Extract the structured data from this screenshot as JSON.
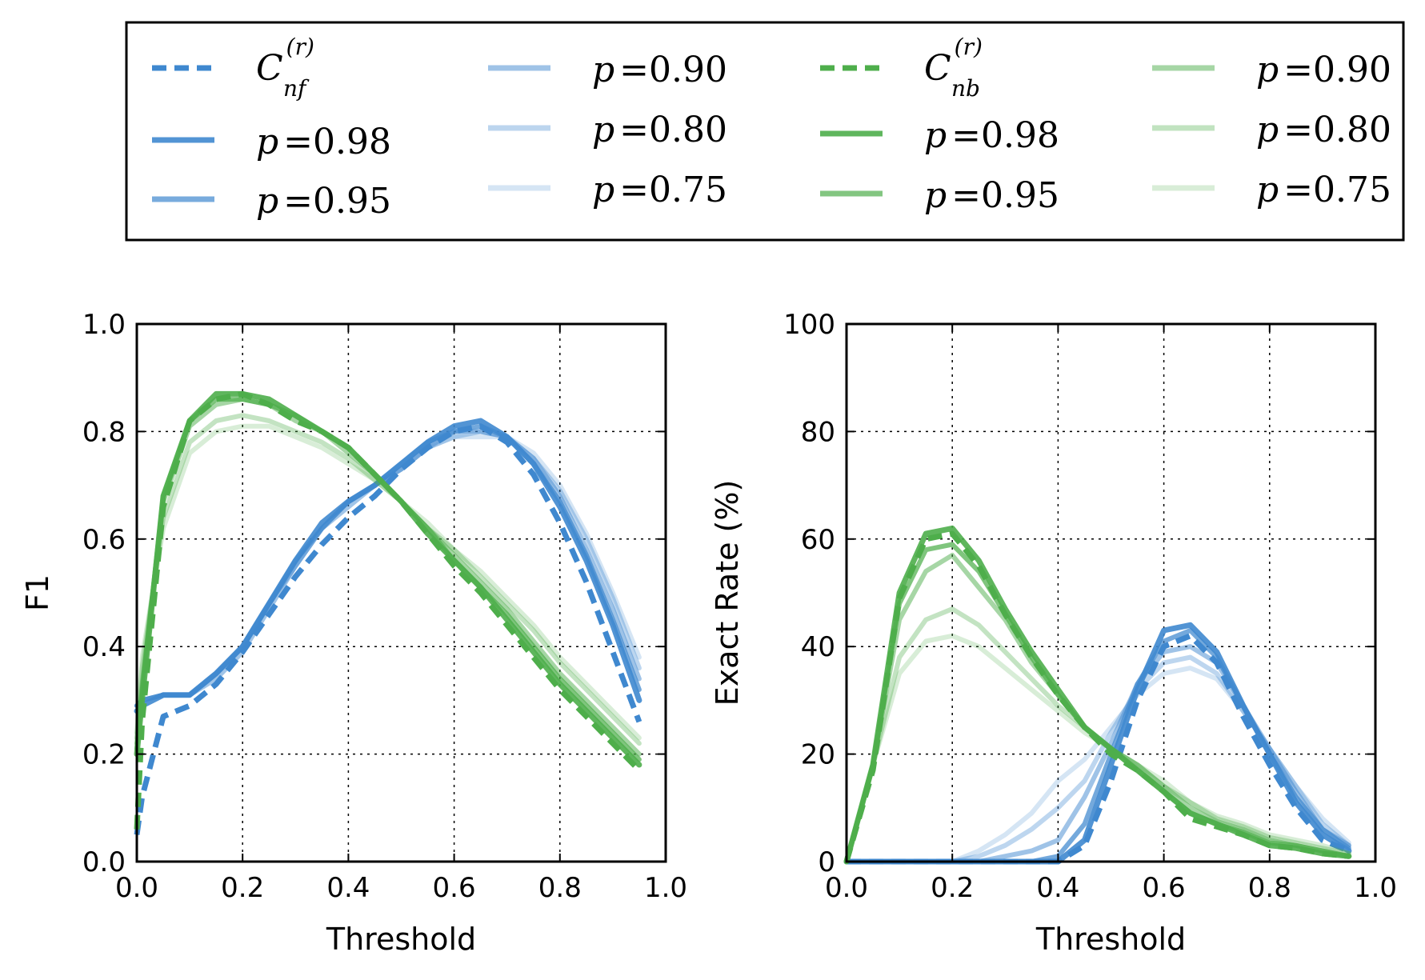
{
  "legend": {
    "entries": [
      {
        "kind": "base",
        "symbol": "C",
        "sup": "(r)",
        "sub": "nf",
        "color": "#3f88cf",
        "opacity": 1.0,
        "dashed": true
      },
      {
        "kind": "p",
        "var": "p",
        "value": "=0.98",
        "color": "#3f88cf",
        "opacity": 0.9,
        "dashed": false
      },
      {
        "kind": "p",
        "var": "p",
        "value": "=0.95",
        "color": "#3f88cf",
        "opacity": 0.7,
        "dashed": false
      },
      {
        "kind": "p",
        "var": "p",
        "value": "=0.90",
        "color": "#3f88cf",
        "opacity": 0.5,
        "dashed": false
      },
      {
        "kind": "p",
        "var": "p",
        "value": "=0.80",
        "color": "#3f88cf",
        "opacity": 0.35,
        "dashed": false
      },
      {
        "kind": "p",
        "var": "p",
        "value": "=0.75",
        "color": "#3f88cf",
        "opacity": 0.22,
        "dashed": false
      },
      {
        "kind": "base",
        "symbol": "C",
        "sup": "(r)",
        "sub": "nb",
        "color": "#4eae4b",
        "opacity": 1.0,
        "dashed": true
      },
      {
        "kind": "p",
        "var": "p",
        "value": "=0.98",
        "color": "#4eae4b",
        "opacity": 0.9,
        "dashed": false
      },
      {
        "kind": "p",
        "var": "p",
        "value": "=0.95",
        "color": "#4eae4b",
        "opacity": 0.7,
        "dashed": false
      },
      {
        "kind": "p",
        "var": "p",
        "value": "=0.90",
        "color": "#4eae4b",
        "opacity": 0.5,
        "dashed": false
      },
      {
        "kind": "p",
        "var": "p",
        "value": "=0.80",
        "color": "#4eae4b",
        "opacity": 0.35,
        "dashed": false
      },
      {
        "kind": "p",
        "var": "p",
        "value": "=0.75",
        "color": "#4eae4b",
        "opacity": 0.22,
        "dashed": false
      }
    ],
    "placement": "top-center"
  },
  "chart_data": [
    {
      "type": "line",
      "xlabel": "Threshold",
      "ylabel": "F1",
      "xlim": [
        0.0,
        1.0
      ],
      "ylim": [
        0.0,
        1.0
      ],
      "xticks": [
        "0.0",
        "0.2",
        "0.4",
        "0.6",
        "0.8",
        "1.0"
      ],
      "yticks": [
        "0.0",
        "0.2",
        "0.4",
        "0.6",
        "0.8",
        "1.0"
      ],
      "grid": true,
      "x": [
        0.0,
        0.01,
        0.05,
        0.1,
        0.15,
        0.2,
        0.25,
        0.3,
        0.35,
        0.4,
        0.45,
        0.5,
        0.55,
        0.6,
        0.65,
        0.7,
        0.75,
        0.8,
        0.85,
        0.9,
        0.95
      ],
      "series": [
        {
          "group": "nf",
          "p": "base",
          "values": [
            0.05,
            0.12,
            0.27,
            0.29,
            0.33,
            0.39,
            0.46,
            0.53,
            0.59,
            0.64,
            0.68,
            0.73,
            0.77,
            0.8,
            0.81,
            0.78,
            0.72,
            0.63,
            0.52,
            0.39,
            0.26
          ]
        },
        {
          "group": "nf",
          "p": "0.98",
          "values": [
            0.28,
            0.29,
            0.31,
            0.31,
            0.35,
            0.4,
            0.48,
            0.56,
            0.63,
            0.67,
            0.7,
            0.74,
            0.78,
            0.81,
            0.82,
            0.79,
            0.74,
            0.66,
            0.56,
            0.44,
            0.3
          ]
        },
        {
          "group": "nf",
          "p": "0.95",
          "values": [
            0.29,
            0.3,
            0.31,
            0.31,
            0.35,
            0.4,
            0.48,
            0.56,
            0.62,
            0.67,
            0.7,
            0.74,
            0.78,
            0.8,
            0.81,
            0.79,
            0.74,
            0.67,
            0.57,
            0.45,
            0.32
          ]
        },
        {
          "group": "nf",
          "p": "0.90",
          "values": [
            0.29,
            0.3,
            0.31,
            0.31,
            0.35,
            0.4,
            0.48,
            0.55,
            0.62,
            0.67,
            0.7,
            0.73,
            0.77,
            0.8,
            0.8,
            0.79,
            0.75,
            0.68,
            0.58,
            0.47,
            0.34
          ]
        },
        {
          "group": "nf",
          "p": "0.80",
          "values": [
            0.29,
            0.3,
            0.31,
            0.31,
            0.34,
            0.39,
            0.47,
            0.55,
            0.62,
            0.66,
            0.7,
            0.73,
            0.77,
            0.79,
            0.8,
            0.79,
            0.75,
            0.69,
            0.6,
            0.49,
            0.36
          ]
        },
        {
          "group": "nf",
          "p": "0.75",
          "values": [
            0.29,
            0.3,
            0.31,
            0.31,
            0.34,
            0.39,
            0.47,
            0.55,
            0.62,
            0.66,
            0.7,
            0.73,
            0.77,
            0.79,
            0.79,
            0.79,
            0.76,
            0.7,
            0.61,
            0.5,
            0.38
          ]
        },
        {
          "group": "nb",
          "p": "base",
          "values": [
            0.06,
            0.26,
            0.66,
            0.82,
            0.86,
            0.87,
            0.85,
            0.82,
            0.8,
            0.77,
            0.72,
            0.67,
            0.61,
            0.55,
            0.5,
            0.44,
            0.38,
            0.32,
            0.27,
            0.22,
            0.17
          ]
        },
        {
          "group": "nb",
          "p": "0.98",
          "values": [
            0.2,
            0.3,
            0.68,
            0.82,
            0.87,
            0.87,
            0.86,
            0.83,
            0.8,
            0.77,
            0.72,
            0.67,
            0.61,
            0.56,
            0.51,
            0.45,
            0.39,
            0.33,
            0.28,
            0.23,
            0.18
          ]
        },
        {
          "group": "nb",
          "p": "0.95",
          "values": [
            0.21,
            0.32,
            0.68,
            0.82,
            0.86,
            0.86,
            0.85,
            0.83,
            0.8,
            0.77,
            0.72,
            0.67,
            0.62,
            0.56,
            0.51,
            0.46,
            0.4,
            0.34,
            0.29,
            0.24,
            0.19
          ]
        },
        {
          "group": "nb",
          "p": "0.90",
          "values": [
            0.22,
            0.33,
            0.67,
            0.81,
            0.85,
            0.86,
            0.85,
            0.82,
            0.8,
            0.76,
            0.72,
            0.67,
            0.62,
            0.57,
            0.52,
            0.47,
            0.41,
            0.35,
            0.3,
            0.25,
            0.2
          ]
        },
        {
          "group": "nb",
          "p": "0.80",
          "values": [
            0.23,
            0.36,
            0.64,
            0.78,
            0.82,
            0.83,
            0.82,
            0.8,
            0.78,
            0.75,
            0.71,
            0.67,
            0.62,
            0.58,
            0.53,
            0.48,
            0.43,
            0.37,
            0.32,
            0.27,
            0.22
          ]
        },
        {
          "group": "nb",
          "p": "0.75",
          "values": [
            0.24,
            0.38,
            0.62,
            0.76,
            0.8,
            0.81,
            0.81,
            0.79,
            0.77,
            0.74,
            0.71,
            0.67,
            0.63,
            0.58,
            0.54,
            0.49,
            0.44,
            0.38,
            0.33,
            0.28,
            0.23
          ]
        }
      ]
    },
    {
      "type": "line",
      "xlabel": "Threshold",
      "ylabel": "Exact Rate (%)",
      "xlim": [
        0.0,
        1.0
      ],
      "ylim": [
        0,
        100
      ],
      "xticks": [
        "0.0",
        "0.2",
        "0.4",
        "0.6",
        "0.8",
        "1.0"
      ],
      "yticks": [
        "0",
        "20",
        "40",
        "60",
        "80",
        "100"
      ],
      "grid": true,
      "x": [
        0.0,
        0.05,
        0.1,
        0.15,
        0.2,
        0.25,
        0.3,
        0.35,
        0.4,
        0.45,
        0.5,
        0.55,
        0.6,
        0.65,
        0.7,
        0.75,
        0.8,
        0.85,
        0.9,
        0.95
      ],
      "series": [
        {
          "group": "nf",
          "p": "base",
          "values": [
            0,
            0,
            0,
            0,
            0,
            0,
            0,
            0,
            0,
            3,
            15,
            30,
            40,
            42,
            37,
            27,
            18,
            10,
            4,
            2
          ]
        },
        {
          "group": "nf",
          "p": "0.98",
          "values": [
            0,
            0,
            0,
            0,
            0,
            0,
            0,
            0,
            0,
            4,
            18,
            32,
            43,
            44,
            39,
            29,
            20,
            11,
            5,
            2
          ]
        },
        {
          "group": "nf",
          "p": "0.95",
          "values": [
            0,
            0,
            0,
            0,
            0,
            0,
            0,
            0,
            1,
            7,
            20,
            33,
            41,
            43,
            38,
            29,
            20,
            12,
            6,
            2.5
          ]
        },
        {
          "group": "nf",
          "p": "0.90",
          "values": [
            0,
            0,
            0,
            0,
            0,
            0,
            1,
            2,
            4,
            12,
            22,
            33,
            39,
            40,
            37,
            29,
            21,
            13,
            6,
            3
          ]
        },
        {
          "group": "nf",
          "p": "0.80",
          "values": [
            0,
            0,
            0,
            0,
            0,
            1,
            3,
            6,
            10,
            15,
            24,
            32,
            37,
            38,
            35,
            28,
            21,
            14,
            7,
            3
          ]
        },
        {
          "group": "nf",
          "p": "0.75",
          "values": [
            0,
            0,
            0,
            0,
            0,
            2,
            5,
            9,
            15,
            19,
            25,
            31,
            35,
            36,
            34,
            28,
            21,
            14,
            8,
            3.5
          ]
        },
        {
          "group": "nb",
          "p": "base",
          "values": [
            0,
            17,
            49,
            60,
            61,
            55,
            46,
            38,
            31,
            25,
            20,
            17,
            13,
            8,
            6.5,
            5,
            3,
            2.5,
            1.5,
            1
          ]
        },
        {
          "group": "nb",
          "p": "0.98",
          "values": [
            0,
            18,
            50,
            61,
            62,
            56,
            47,
            39,
            32,
            25,
            21,
            17,
            13,
            9,
            7,
            5,
            3,
            2.5,
            1.5,
            1
          ]
        },
        {
          "group": "nb",
          "p": "0.95",
          "values": [
            0,
            18,
            48,
            58,
            59,
            54,
            46,
            38,
            31,
            25,
            21,
            17,
            13,
            9,
            7,
            5.5,
            3.5,
            3,
            2,
            1
          ]
        },
        {
          "group": "nb",
          "p": "0.90",
          "values": [
            0,
            18,
            45,
            54,
            57,
            51,
            45,
            37,
            31,
            25,
            21,
            18,
            14,
            10,
            7.5,
            6,
            4,
            3,
            2,
            1
          ]
        },
        {
          "group": "nb",
          "p": "0.80",
          "values": [
            0,
            18,
            38,
            45,
            47,
            44,
            39,
            34,
            29,
            25,
            21,
            18,
            14,
            11,
            8,
            6.5,
            4.5,
            3.5,
            2.5,
            1.5
          ]
        },
        {
          "group": "nb",
          "p": "0.75",
          "values": [
            0,
            18,
            35,
            41,
            42,
            40,
            36,
            32,
            28,
            24,
            21,
            18,
            15,
            11,
            8.5,
            7,
            5,
            4,
            3,
            1.5
          ]
        }
      ]
    }
  ]
}
